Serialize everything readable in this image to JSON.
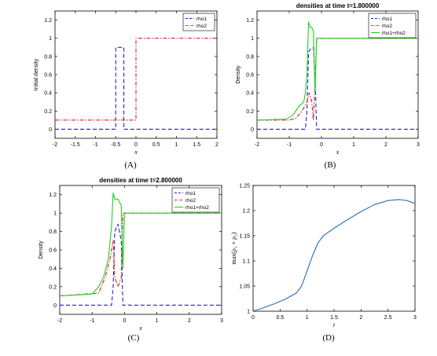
{
  "colors": {
    "rho1": "#1f1fd6",
    "rho2": "#d42020",
    "sum": "#1fd21f",
    "curve": "#2a6eb5",
    "axis": "#000000"
  },
  "chart_data": [
    {
      "id": "A",
      "type": "line",
      "caption": "(A)",
      "title": "",
      "xlabel": "x",
      "ylabel": "Initial density",
      "xlim": [
        -2,
        2
      ],
      "ylim": [
        -0.1,
        1.3
      ],
      "xticks": [
        "-2",
        "-1.5",
        "-1",
        "-0.5",
        "0",
        "0.5",
        "1",
        "1.5",
        "2"
      ],
      "yticks": [
        "0",
        "0.2",
        "0.4",
        "0.6",
        "0.8",
        "1",
        "1.2"
      ],
      "legend_position": "top-right",
      "series": [
        {
          "name": "rho1",
          "style": "dashed",
          "x": [
            -2,
            -0.5,
            -0.5,
            -0.3,
            -0.3,
            2
          ],
          "y": [
            0,
            0,
            0.9,
            0.9,
            0,
            0
          ]
        },
        {
          "name": "rho2",
          "style": "dashdot",
          "x": [
            -2,
            0,
            0,
            2
          ],
          "y": [
            0.1,
            0.1,
            1,
            1
          ]
        }
      ]
    },
    {
      "id": "B",
      "type": "line",
      "caption": "(B)",
      "title": "densities at time t=1.800000",
      "xlabel": "x",
      "ylabel": "Density",
      "xlim": [
        -2,
        3
      ],
      "ylim": [
        -0.1,
        1.3
      ],
      "xticks": [
        "-2",
        "-1",
        "0",
        "1",
        "2",
        "3"
      ],
      "yticks": [
        "0",
        "0.2",
        "0.4",
        "0.6",
        "0.8",
        "1",
        "1.2"
      ],
      "legend_position": "top-right",
      "series": [
        {
          "name": "rho1",
          "style": "dashed",
          "x": [
            -2,
            -0.5,
            -0.45,
            -0.4,
            -0.35,
            -0.25,
            -0.2,
            -0.15,
            3
          ],
          "y": [
            0,
            0,
            0.2,
            0.85,
            0.88,
            0.9,
            0.6,
            0,
            0
          ]
        },
        {
          "name": "rho2",
          "style": "dashdot",
          "x": [
            -2,
            -1,
            -0.8,
            -0.6,
            -0.45,
            -0.38,
            -0.3,
            -0.25,
            -0.2,
            -0.15,
            3
          ],
          "y": [
            0.1,
            0.1,
            0.12,
            0.2,
            0.3,
            0.4,
            0.3,
            0.1,
            0.5,
            1,
            1
          ]
        },
        {
          "name": "rho1+rho2",
          "style": "solid",
          "x": [
            -2,
            -1.1,
            -0.9,
            -0.7,
            -0.55,
            -0.5,
            -0.45,
            -0.4,
            -0.35,
            -0.3,
            -0.25,
            -0.2,
            -0.15,
            3
          ],
          "y": [
            0.1,
            0.11,
            0.15,
            0.25,
            0.3,
            0.4,
            0.6,
            1.18,
            1.12,
            1.12,
            1.08,
            0.4,
            1,
            1
          ]
        }
      ]
    },
    {
      "id": "C",
      "type": "line",
      "caption": "(C)",
      "title": "densities at time t=2.800000",
      "xlabel": "x",
      "ylabel": "Density",
      "xlim": [
        -2,
        3
      ],
      "ylim": [
        -0.1,
        1.3
      ],
      "xticks": [
        "-2",
        "-1",
        "0",
        "1",
        "2",
        "3"
      ],
      "yticks": [
        "0",
        "0.2",
        "0.4",
        "0.6",
        "0.8",
        "1",
        "1.2"
      ],
      "legend_position": "top-right",
      "series": [
        {
          "name": "rho1",
          "style": "dashed",
          "x": [
            -2,
            -0.4,
            -0.35,
            -0.3,
            -0.2,
            -0.1,
            -0.05,
            3
          ],
          "y": [
            0,
            0,
            0.2,
            0.8,
            0.88,
            0.7,
            0,
            0
          ]
        },
        {
          "name": "rho2",
          "style": "dashdot",
          "x": [
            -2,
            -0.8,
            -0.6,
            -0.45,
            -0.35,
            -0.3,
            -0.2,
            -0.1,
            -0.05,
            3
          ],
          "y": [
            0.1,
            0.13,
            0.3,
            0.5,
            0.7,
            0.3,
            0.2,
            0.3,
            1,
            1
          ]
        },
        {
          "name": "rho1+rho2",
          "style": "solid",
          "x": [
            -2,
            -1.0,
            -0.8,
            -0.65,
            -0.5,
            -0.4,
            -0.35,
            -0.3,
            -0.2,
            -0.1,
            -0.05,
            0.0,
            3
          ],
          "y": [
            0.1,
            0.12,
            0.2,
            0.3,
            0.5,
            0.85,
            1.22,
            1.15,
            1.15,
            1.08,
            0.4,
            1,
            1
          ]
        }
      ]
    },
    {
      "id": "D",
      "type": "line",
      "caption": "(D)",
      "title": "",
      "xlabel": "t",
      "ylabel": "max(ρ₁ + ρ₂)",
      "xlim": [
        0,
        3
      ],
      "ylim": [
        1,
        1.25
      ],
      "xticks": [
        "0",
        "0.5",
        "1",
        "1.5",
        "2",
        "2.5",
        "3"
      ],
      "yticks": [
        "1",
        "1.05",
        "1.1",
        "1.15",
        "1.2",
        "1.25"
      ],
      "series": [
        {
          "x": [
            0,
            0.2,
            0.4,
            0.6,
            0.8,
            0.9,
            1.0,
            1.1,
            1.2,
            1.3,
            1.5,
            1.75,
            2.0,
            2.25,
            2.5,
            2.7,
            2.85,
            3.0
          ],
          "y": [
            1.0,
            1.007,
            1.015,
            1.024,
            1.036,
            1.05,
            1.08,
            1.11,
            1.135,
            1.15,
            1.165,
            1.182,
            1.198,
            1.212,
            1.22,
            1.222,
            1.22,
            1.214
          ]
        }
      ]
    }
  ]
}
